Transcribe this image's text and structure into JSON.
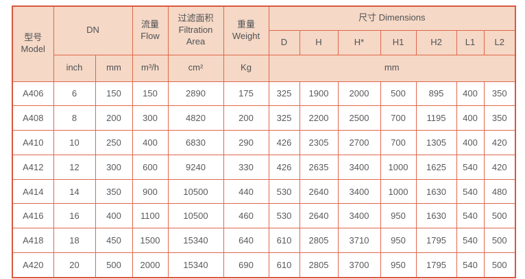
{
  "table": {
    "header": {
      "model": "型号\nModel",
      "dn": "DN",
      "flow": "流量\nFlow",
      "filtration": "过滤面积\nFiltration\nArea",
      "weight": "重量\nWeight",
      "dimensions": "尺寸 Dimensions",
      "dim_cols": [
        "D",
        "H",
        "H*",
        "H1",
        "H2",
        "L1",
        "L2"
      ],
      "units": {
        "inch": "inch",
        "mm": "mm",
        "flow": "m³/h",
        "area": "cm²",
        "weight": "Kg",
        "dims": "mm"
      }
    },
    "rows": [
      {
        "model": "A406",
        "values": [
          "6",
          "150",
          "150",
          "2890",
          "175",
          "325",
          "1900",
          "2000",
          "500",
          "895",
          "400",
          "350"
        ]
      },
      {
        "model": "A408",
        "values": [
          "8",
          "200",
          "300",
          "4820",
          "200",
          "325",
          "2200",
          "2500",
          "700",
          "1195",
          "400",
          "350"
        ]
      },
      {
        "model": "A410",
        "values": [
          "10",
          "250",
          "400",
          "6830",
          "290",
          "426",
          "2305",
          "2700",
          "700",
          "1305",
          "400",
          "420"
        ]
      },
      {
        "model": "A412",
        "values": [
          "12",
          "300",
          "600",
          "9240",
          "330",
          "426",
          "2635",
          "3400",
          "1000",
          "1625",
          "540",
          "420"
        ]
      },
      {
        "model": "A414",
        "values": [
          "14",
          "350",
          "900",
          "10500",
          "440",
          "530",
          "2640",
          "3400",
          "1000",
          "1630",
          "540",
          "480"
        ]
      },
      {
        "model": "A416",
        "values": [
          "16",
          "400",
          "1100",
          "10500",
          "460",
          "530",
          "2640",
          "3400",
          "950",
          "1630",
          "540",
          "500"
        ]
      },
      {
        "model": "A418",
        "values": [
          "18",
          "450",
          "1500",
          "15340",
          "640",
          "610",
          "2805",
          "3710",
          "950",
          "1795",
          "540",
          "500"
        ]
      },
      {
        "model": "A420",
        "values": [
          "20",
          "500",
          "2000",
          "15340",
          "690",
          "610",
          "2805",
          "3700",
          "950",
          "1795",
          "540",
          "500"
        ]
      }
    ],
    "colors": {
      "header_bg": "#f5d8c6",
      "grid_line": "#e0664b",
      "outer_border": "#d8573d",
      "text": "#58595b"
    }
  }
}
